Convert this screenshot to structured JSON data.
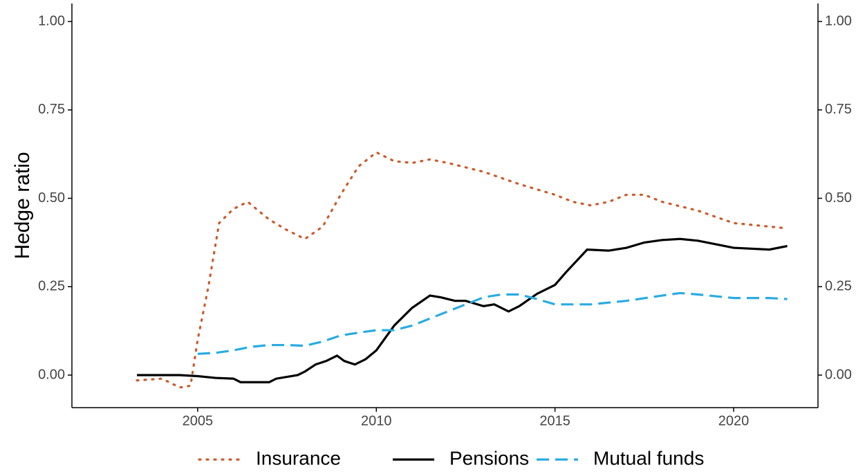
{
  "chart_data": {
    "type": "line",
    "ylabel": "Hedge ratio",
    "xlim": [
      2001.48,
      2022.36
    ],
    "ylim": [
      -0.092,
      1.051
    ],
    "xticks": [
      2005,
      2010,
      2015,
      2020
    ],
    "yticks": [
      {
        "value": 0,
        "label": "0.00"
      },
      {
        "value": 0.25,
        "label": "0.25"
      },
      {
        "value": 0.5,
        "label": "0.50"
      },
      {
        "value": 0.75,
        "label": "0.75"
      },
      {
        "value": 1,
        "label": "1.00"
      }
    ],
    "legend": "bottom",
    "series": [
      {
        "name": "Insurance",
        "color": "#cc5a2a",
        "linestyle": "dotted",
        "x": [
          2003.3,
          2004,
          2004.5,
          2004.8,
          2005,
          2005.3,
          2005.6,
          2006,
          2006.4,
          2007,
          2007.5,
          2008,
          2008.5,
          2009,
          2009.5,
          2010,
          2010.5,
          2011,
          2011.5,
          2012,
          2013,
          2014,
          2015,
          2015.5,
          2016,
          2016.5,
          2017,
          2017.5,
          2018,
          2019,
          2020,
          2021,
          2021.5
        ],
        "values": [
          -0.015,
          -0.01,
          -0.035,
          -0.03,
          0.1,
          0.25,
          0.43,
          0.47,
          0.49,
          0.44,
          0.41,
          0.385,
          0.42,
          0.51,
          0.59,
          0.63,
          0.605,
          0.6,
          0.61,
          0.6,
          0.575,
          0.54,
          0.51,
          0.49,
          0.48,
          0.49,
          0.51,
          0.51,
          0.49,
          0.465,
          0.43,
          0.42,
          0.415
        ]
      },
      {
        "name": "Pensions",
        "color": "#000000",
        "linestyle": "solid",
        "x": [
          2003.3,
          2004,
          2004.5,
          2005,
          2005.5,
          2006,
          2006.2,
          2007,
          2007.2,
          2007.8,
          2008,
          2008.3,
          2008.6,
          2008.9,
          2009.1,
          2009.4,
          2009.7,
          2010,
          2010.5,
          2011,
          2011.5,
          2011.8,
          2012.2,
          2012.5,
          2013,
          2013.3,
          2013.7,
          2014,
          2014.5,
          2015,
          2015.3,
          2015.9,
          2016.5,
          2017,
          2017.5,
          2018,
          2018.5,
          2019,
          2019.5,
          2020,
          2021,
          2021.5
        ],
        "values": [
          0,
          0,
          0,
          -0.003,
          -0.008,
          -0.01,
          -0.02,
          -0.02,
          -0.01,
          0,
          0.01,
          0.03,
          0.04,
          0.055,
          0.04,
          0.03,
          0.045,
          0.07,
          0.14,
          0.19,
          0.225,
          0.22,
          0.21,
          0.21,
          0.195,
          0.2,
          0.18,
          0.195,
          0.23,
          0.255,
          0.29,
          0.355,
          0.352,
          0.36,
          0.375,
          0.382,
          0.385,
          0.38,
          0.37,
          0.36,
          0.355,
          0.365
        ]
      },
      {
        "name": "Mutual funds",
        "color": "#29abe2",
        "linestyle": "dashed",
        "x": [
          2005,
          2005.5,
          2006,
          2006.5,
          2007,
          2007.5,
          2008,
          2008.5,
          2009,
          2009.5,
          2010,
          2010.5,
          2011,
          2011.5,
          2012,
          2012.5,
          2013,
          2013.5,
          2014,
          2014.5,
          2015,
          2016,
          2017,
          2018,
          2018.5,
          2019,
          2020,
          2021,
          2021.5
        ],
        "values": [
          0.06,
          0.063,
          0.07,
          0.08,
          0.085,
          0.085,
          0.083,
          0.095,
          0.112,
          0.12,
          0.127,
          0.127,
          0.14,
          0.16,
          0.18,
          0.2,
          0.22,
          0.228,
          0.228,
          0.215,
          0.2,
          0.2,
          0.21,
          0.225,
          0.232,
          0.228,
          0.218,
          0.218,
          0.215
        ]
      }
    ]
  }
}
